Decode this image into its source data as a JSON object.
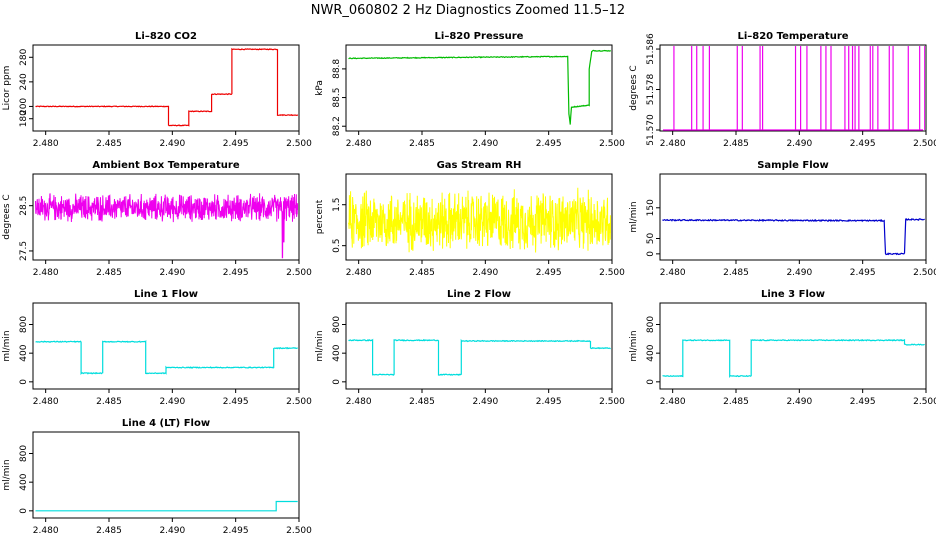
{
  "page_title": "NWR_060802  2 Hz Diagnostics Zoomed 11.5–12",
  "chart_data": [
    {
      "type": "line",
      "title": "Li–820 CO2",
      "ylabel": "Licor ppm",
      "color": "#ee0000",
      "xlim": [
        2.479,
        2.5
      ],
      "ylim": [
        160,
        300
      ],
      "xticks": [
        "2.480",
        "2.485",
        "2.490",
        "2.495",
        "2.500"
      ],
      "yticks": [
        {
          "value": 180,
          "label": "180"
        },
        {
          "value": 200,
          "label": "200"
        },
        {
          "value": 240,
          "label": "240"
        },
        {
          "value": 280,
          "label": "280"
        }
      ],
      "noise": 0.6,
      "series": [
        {
          "x": [
            2.4792,
            2.4897,
            2.4897,
            2.4913,
            2.4913,
            2.4931,
            2.4931,
            2.4947,
            2.4947,
            2.4983,
            2.4983,
            2.4999
          ],
          "y": [
            200,
            200,
            169,
            169,
            192,
            192,
            220,
            220,
            293,
            293,
            186,
            186
          ]
        }
      ]
    },
    {
      "type": "line",
      "title": "Li–820 Pressure",
      "ylabel": "kPa",
      "color": "#00bb00",
      "xlim": [
        2.479,
        2.5
      ],
      "ylim": [
        88.15,
        89.05
      ],
      "xticks": [
        "2.480",
        "2.485",
        "2.490",
        "2.495",
        "2.500"
      ],
      "yticks": [
        {
          "value": 88.2,
          "label": "88.2"
        },
        {
          "value": 88.5,
          "label": "88.5"
        },
        {
          "value": 88.8,
          "label": "88.8"
        }
      ],
      "noise": 0.004,
      "series": [
        {
          "x": [
            2.4792,
            2.4965,
            2.4966,
            2.4967,
            2.4968,
            2.4982,
            2.4982,
            2.4984,
            2.4985,
            2.4999
          ],
          "y": [
            88.91,
            88.93,
            88.33,
            88.22,
            88.4,
            88.42,
            88.8,
            88.98,
            88.99,
            88.99
          ]
        }
      ]
    },
    {
      "type": "line",
      "title": "Li–820 Temperature",
      "ylabel": "degrees C",
      "color": "#ee00ee",
      "xlim": [
        2.479,
        2.5
      ],
      "ylim": [
        51.5698,
        51.5868
      ],
      "xticks": [
        "2.480",
        "2.485",
        "2.490",
        "2.495",
        "2.500"
      ],
      "yticks": [
        {
          "value": 51.57,
          "label": "51.570"
        },
        {
          "value": 51.578,
          "label": "51.578"
        },
        {
          "value": 51.586,
          "label": "51.586"
        }
      ],
      "spikes": {
        "base": 51.57,
        "top": 51.5868,
        "x": [
          2.4801,
          2.4815,
          2.4819,
          2.4824,
          2.4829,
          2.4851,
          2.4855,
          2.4869,
          2.4871,
          2.4897,
          2.4901,
          2.4906,
          2.4917,
          2.4921,
          2.4925,
          2.4936,
          2.4939,
          2.4942,
          2.4944,
          2.4947,
          2.4956,
          2.4958,
          2.4962,
          2.4971,
          2.4974,
          2.4986,
          2.4995,
          2.4999
        ]
      }
    },
    {
      "type": "line",
      "title": "Ambient Box Temperature",
      "ylabel": "degrees C",
      "color": "#ee00ee",
      "xlim": [
        2.479,
        2.5
      ],
      "ylim": [
        27.3,
        29.2
      ],
      "xticks": [
        "2.480",
        "2.485",
        "2.490",
        "2.495",
        "2.500"
      ],
      "yticks": [
        {
          "value": 27.5,
          "label": "27.5"
        },
        {
          "value": 28.5,
          "label": "28.5"
        }
      ],
      "noise_band": {
        "x0": 2.4792,
        "x1": 2.4999,
        "mean": 28.45,
        "amp": 0.35,
        "n": 900,
        "dips": [
          [
            2.4987,
            27.35
          ],
          [
            2.4988,
            27.7
          ]
        ]
      }
    },
    {
      "type": "line",
      "title": "Gas Stream RH",
      "ylabel": "percent",
      "color": "#ffff00",
      "xlim": [
        2.479,
        2.5
      ],
      "ylim": [
        0.15,
        2.25
      ],
      "xticks": [
        "2.480",
        "2.485",
        "2.490",
        "2.495",
        "2.500"
      ],
      "yticks": [
        {
          "value": 0.5,
          "label": "0.5"
        },
        {
          "value": 1.5,
          "label": "1.5"
        }
      ],
      "noise_band": {
        "x0": 2.4792,
        "x1": 2.4999,
        "mean": 1.1,
        "amp": 0.85,
        "n": 900,
        "dips": []
      }
    },
    {
      "type": "line",
      "title": "Sample Flow",
      "ylabel": "ml/min",
      "color": "#0000cc",
      "xlim": [
        2.479,
        2.5
      ],
      "ylim": [
        -20,
        260
      ],
      "xticks": [
        "2.480",
        "2.485",
        "2.490",
        "2.495",
        "2.500"
      ],
      "yticks": [
        {
          "value": 0,
          "label": "0"
        },
        {
          "value": 50,
          "label": "50"
        },
        {
          "value": 150,
          "label": "150"
        }
      ],
      "noise": 2,
      "series": [
        {
          "x": [
            2.4792,
            2.4967,
            2.4968,
            2.4983,
            2.4984,
            2.4999
          ],
          "y": [
            110,
            108,
            0,
            0,
            112,
            112
          ]
        }
      ]
    },
    {
      "type": "line",
      "title": "Line 1 Flow",
      "ylabel": "ml/min",
      "color": "#00dddd",
      "xlim": [
        2.479,
        2.5
      ],
      "ylim": [
        -100,
        1100
      ],
      "xticks": [
        "2.480",
        "2.485",
        "2.490",
        "2.495",
        "2.500"
      ],
      "yticks": [
        {
          "value": 0,
          "label": "0"
        },
        {
          "value": 400,
          "label": "400"
        },
        {
          "value": 800,
          "label": "800"
        }
      ],
      "noise": 6,
      "series": [
        {
          "x": [
            2.4792,
            2.4828,
            2.4828,
            2.4845,
            2.4845,
            2.4879,
            2.4879,
            2.4895,
            2.4895,
            2.498,
            2.498,
            2.4999
          ],
          "y": [
            560,
            560,
            120,
            120,
            560,
            560,
            120,
            120,
            200,
            200,
            470,
            470
          ]
        }
      ]
    },
    {
      "type": "line",
      "title": "Line 2 Flow",
      "ylabel": "ml/min",
      "color": "#00dddd",
      "xlim": [
        2.479,
        2.5
      ],
      "ylim": [
        -100,
        1100
      ],
      "xticks": [
        "2.480",
        "2.485",
        "2.490",
        "2.495",
        "2.500"
      ],
      "yticks": [
        {
          "value": 0,
          "label": "0"
        },
        {
          "value": 400,
          "label": "400"
        },
        {
          "value": 800,
          "label": "800"
        }
      ],
      "noise": 6,
      "series": [
        {
          "x": [
            2.4792,
            2.4811,
            2.4811,
            2.4828,
            2.4828,
            2.4863,
            2.4863,
            2.4881,
            2.4881,
            2.4983,
            2.4983,
            2.4999
          ],
          "y": [
            580,
            580,
            100,
            100,
            580,
            580,
            100,
            100,
            570,
            570,
            470,
            470
          ]
        }
      ]
    },
    {
      "type": "line",
      "title": "Line 3 Flow",
      "ylabel": "ml/min",
      "color": "#00dddd",
      "xlim": [
        2.479,
        2.5
      ],
      "ylim": [
        -100,
        1100
      ],
      "xticks": [
        "2.480",
        "2.485",
        "2.490",
        "2.495",
        "2.500"
      ],
      "yticks": [
        {
          "value": 0,
          "label": "0"
        },
        {
          "value": 400,
          "label": "400"
        },
        {
          "value": 800,
          "label": "800"
        }
      ],
      "noise": 6,
      "series": [
        {
          "x": [
            2.4792,
            2.4808,
            2.4808,
            2.4845,
            2.4845,
            2.4862,
            2.4862,
            2.4983,
            2.4983,
            2.4999
          ],
          "y": [
            80,
            80,
            580,
            580,
            80,
            80,
            580,
            580,
            520,
            520
          ]
        }
      ]
    },
    {
      "type": "line",
      "title": "Line 4 (LT) Flow",
      "ylabel": "ml/min",
      "color": "#00dddd",
      "xlim": [
        2.479,
        2.5
      ],
      "ylim": [
        -100,
        1100
      ],
      "xticks": [
        "2.480",
        "2.485",
        "2.490",
        "2.495",
        "2.500"
      ],
      "yticks": [
        {
          "value": 0,
          "label": "0"
        },
        {
          "value": 400,
          "label": "400"
        },
        {
          "value": 800,
          "label": "800"
        }
      ],
      "noise": 0,
      "series": [
        {
          "x": [
            2.4792,
            2.4982,
            2.4982,
            2.4999
          ],
          "y": [
            0,
            0,
            130,
            130
          ]
        }
      ]
    }
  ]
}
